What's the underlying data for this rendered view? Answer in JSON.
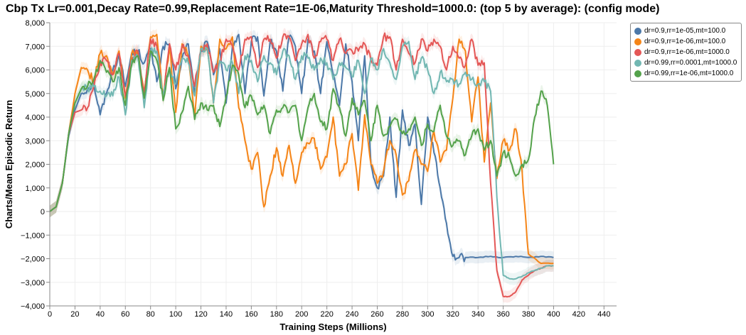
{
  "chart_data": {
    "type": "line",
    "title": "Cbp Tx Lr=0.001,Decay Rate=0.99,Replacement Rate=1E-06,Maturity Threshold=1000.0: (top 5 by average): (config mode)",
    "xlabel": "Training Steps (Millions)",
    "ylabel": "Charts/Mean Episodic Return",
    "xlim": [
      0,
      450
    ],
    "ylim": [
      -4000,
      8000
    ],
    "xticks": [
      0,
      20,
      40,
      60,
      80,
      100,
      120,
      140,
      160,
      180,
      200,
      220,
      240,
      260,
      280,
      300,
      320,
      340,
      360,
      380,
      400,
      420,
      440
    ],
    "yticks": [
      -4000,
      -3000,
      -2000,
      -1000,
      0,
      1000,
      2000,
      3000,
      4000,
      5000,
      6000,
      7000,
      8000
    ],
    "xtick_labels": [
      "0",
      "20",
      "40",
      "60",
      "80",
      "100",
      "120",
      "140",
      "160",
      "180",
      "200",
      "220",
      "240",
      "260",
      "280",
      "300",
      "320",
      "340",
      "360",
      "380",
      "400",
      "420",
      "440"
    ],
    "ytick_labels": [
      "−4,000",
      "−3,000",
      "−2,000",
      "−1,000",
      "0",
      "1,000",
      "2,000",
      "3,000",
      "4,000",
      "5,000",
      "6,000",
      "7,000",
      "8,000"
    ],
    "grid": true,
    "legend_position": "top-right",
    "series": [
      {
        "name": "dr=0.9,rr=1e-05,mt=100.0",
        "color": "#4c78a8",
        "x": [
          0,
          5,
          10,
          15,
          20,
          25,
          30,
          35,
          40,
          45,
          50,
          55,
          60,
          65,
          70,
          75,
          80,
          85,
          90,
          95,
          100,
          105,
          110,
          115,
          120,
          125,
          130,
          135,
          140,
          145,
          150,
          155,
          160,
          165,
          170,
          175,
          180,
          185,
          190,
          195,
          200,
          205,
          210,
          215,
          220,
          225,
          230,
          235,
          240,
          245,
          250,
          255,
          260,
          265,
          270,
          275,
          280,
          285,
          290,
          295,
          300,
          305,
          310,
          315,
          320,
          325,
          330,
          340,
          350,
          360,
          370,
          380,
          390,
          400
        ],
        "y": [
          0,
          200,
          1200,
          3200,
          4300,
          5000,
          5200,
          5400,
          4100,
          5000,
          6000,
          6600,
          5300,
          6700,
          6800,
          6300,
          6900,
          5500,
          7000,
          7100,
          5200,
          6500,
          7100,
          5000,
          6800,
          7200,
          5800,
          6900,
          4600,
          7000,
          7500,
          5000,
          7200,
          7400,
          4900,
          7200,
          6800,
          5100,
          7400,
          7000,
          5000,
          7300,
          6800,
          5000,
          7200,
          5800,
          4500,
          7100,
          5500,
          3000,
          6600,
          2000,
          1000,
          1500,
          4000,
          600,
          4300,
          2800,
          3700,
          300,
          4000,
          2500,
          1000,
          -500,
          -1900,
          -1950,
          -1950,
          -1950,
          -1900,
          -1950,
          -1900,
          -1950,
          -1900,
          -1950
        ]
      },
      {
        "name": "dr=0.9,rr=1e-06,mt=100.0",
        "color": "#f58518",
        "x": [
          0,
          5,
          10,
          15,
          20,
          25,
          30,
          35,
          40,
          45,
          50,
          55,
          60,
          65,
          70,
          75,
          80,
          85,
          90,
          95,
          100,
          105,
          110,
          115,
          120,
          125,
          130,
          135,
          140,
          145,
          150,
          155,
          160,
          165,
          170,
          175,
          180,
          185,
          190,
          195,
          200,
          205,
          210,
          215,
          220,
          225,
          230,
          235,
          240,
          245,
          250,
          255,
          260,
          265,
          270,
          275,
          280,
          285,
          290,
          295,
          300,
          305,
          310,
          315,
          320,
          325,
          330,
          335,
          340,
          345,
          350,
          355,
          360,
          365,
          370,
          375,
          380,
          390,
          400
        ],
        "y": [
          0,
          200,
          1200,
          3300,
          5000,
          6100,
          6000,
          5500,
          6700,
          6600,
          5800,
          6800,
          4800,
          6700,
          6600,
          5000,
          7400,
          7500,
          4800,
          7000,
          4200,
          7100,
          6600,
          4000,
          7000,
          7000,
          4600,
          7300,
          6900,
          7400,
          4400,
          3000,
          1800,
          2500,
          200,
          1500,
          2700,
          1500,
          2800,
          1200,
          2500,
          2900,
          3100,
          1800,
          2300,
          4000,
          1500,
          2000,
          3300,
          900,
          4100,
          2000,
          1200,
          1700,
          3000,
          2400,
          700,
          1300,
          2600,
          2000,
          1700,
          3400,
          2100,
          2600,
          4800,
          7300,
          6800,
          3800,
          5700,
          2100,
          4600,
          1400,
          3000,
          2600,
          3500,
          1700,
          -1800,
          -2200,
          -2200
        ]
      },
      {
        "name": "dr=0.9,rr=1e-06,mt=1000.0",
        "color": "#e45756",
        "x": [
          0,
          5,
          10,
          15,
          20,
          25,
          30,
          35,
          40,
          45,
          50,
          55,
          60,
          65,
          70,
          75,
          80,
          85,
          90,
          95,
          100,
          105,
          110,
          115,
          120,
          125,
          130,
          135,
          140,
          145,
          150,
          155,
          160,
          165,
          170,
          175,
          180,
          185,
          190,
          195,
          200,
          205,
          210,
          215,
          220,
          225,
          230,
          235,
          240,
          245,
          250,
          255,
          260,
          265,
          270,
          275,
          280,
          285,
          290,
          295,
          300,
          305,
          310,
          315,
          320,
          325,
          330,
          335,
          340,
          345,
          350,
          355,
          360,
          365,
          370,
          375,
          380,
          385,
          390,
          395,
          400
        ],
        "y": [
          0,
          200,
          1200,
          3300,
          4200,
          4300,
          4400,
          5300,
          6300,
          6400,
          5800,
          6700,
          4900,
          6400,
          6800,
          5000,
          7300,
          7000,
          4800,
          7100,
          6000,
          7000,
          6600,
          5300,
          6800,
          7100,
          5900,
          6300,
          7300,
          7000,
          6000,
          7300,
          7400,
          6100,
          7300,
          7300,
          6500,
          7400,
          7400,
          6400,
          7100,
          7500,
          6500,
          7200,
          7300,
          6400,
          7300,
          6700,
          6800,
          6800,
          7100,
          6400,
          6200,
          7400,
          7400,
          6000,
          7300,
          6700,
          6300,
          7300,
          6800,
          7300,
          7000,
          6000,
          7000,
          6500,
          6200,
          7300,
          6200,
          6300,
          1200,
          -2500,
          -3600,
          -3600,
          -3400,
          -2900,
          -2700,
          -2500,
          -2400,
          -2300,
          -2300
        ]
      },
      {
        "name": "dr=0.99,rr=0.0001,mt=1000.0",
        "color": "#72b7b2",
        "x": [
          0,
          5,
          10,
          15,
          20,
          25,
          30,
          35,
          40,
          45,
          50,
          55,
          60,
          65,
          70,
          75,
          80,
          85,
          90,
          95,
          100,
          105,
          110,
          115,
          120,
          125,
          130,
          135,
          140,
          145,
          150,
          155,
          160,
          165,
          170,
          175,
          180,
          185,
          190,
          195,
          200,
          205,
          210,
          215,
          220,
          225,
          230,
          235,
          240,
          245,
          250,
          255,
          260,
          265,
          270,
          275,
          280,
          285,
          290,
          295,
          300,
          305,
          310,
          315,
          320,
          325,
          330,
          335,
          340,
          345,
          350,
          355,
          360,
          365,
          370,
          375,
          380,
          385,
          390,
          395,
          400
        ],
        "y": [
          0,
          200,
          1200,
          3300,
          4600,
          5200,
          5200,
          5300,
          5100,
          4900,
          4900,
          5700,
          4100,
          6400,
          6600,
          4400,
          6800,
          6800,
          4900,
          6100,
          5400,
          6500,
          6300,
          4900,
          6900,
          6900,
          4600,
          6400,
          6000,
          6300,
          5000,
          6600,
          6400,
          5500,
          6600,
          6300,
          5800,
          6800,
          6600,
          5600,
          6600,
          6500,
          6000,
          6500,
          6300,
          5600,
          6300,
          6100,
          5700,
          6400,
          5000,
          6500,
          6000,
          6900,
          6300,
          5600,
          7000,
          7200,
          5600,
          6500,
          6000,
          5000,
          5900,
          5500,
          5600,
          5400,
          5900,
          5600,
          5400,
          5500,
          5100,
          600,
          -2700,
          -2850,
          -2850,
          -2750,
          -2600,
          -2500,
          -2400,
          -2300,
          -2300
        ]
      },
      {
        "name": "dr=0.99,rr=1e-06,mt=1000.0",
        "color": "#54a24b",
        "x": [
          0,
          5,
          10,
          15,
          20,
          25,
          30,
          35,
          40,
          45,
          50,
          55,
          60,
          65,
          70,
          75,
          80,
          85,
          90,
          95,
          100,
          105,
          110,
          115,
          120,
          125,
          130,
          135,
          140,
          145,
          150,
          155,
          160,
          165,
          170,
          175,
          180,
          185,
          190,
          195,
          200,
          205,
          210,
          215,
          220,
          225,
          230,
          235,
          240,
          245,
          250,
          255,
          260,
          265,
          270,
          275,
          280,
          285,
          290,
          295,
          300,
          305,
          310,
          315,
          320,
          325,
          330,
          335,
          340,
          345,
          350,
          355,
          360,
          365,
          370,
          375,
          380,
          385,
          390,
          395,
          400
        ],
        "y": [
          0,
          200,
          1200,
          3300,
          4600,
          5200,
          5300,
          5600,
          6400,
          5900,
          5500,
          6100,
          4500,
          6200,
          6600,
          4800,
          6800,
          6400,
          4700,
          6100,
          3500,
          4200,
          5300,
          3900,
          4600,
          4300,
          4500,
          3600,
          4900,
          6200,
          5800,
          4400,
          4900,
          4100,
          4500,
          3300,
          4300,
          4400,
          4200,
          4500,
          3000,
          4400,
          5000,
          3800,
          3500,
          5200,
          4400,
          3200,
          4800,
          4100,
          4700,
          3000,
          4500,
          3200,
          3600,
          3900,
          3300,
          3500,
          4000,
          2800,
          3700,
          3400,
          4500,
          3200,
          2800,
          3000,
          2400,
          3200,
          3500,
          2600,
          3000,
          1500,
          2500,
          2300,
          1500,
          2000,
          2200,
          4000,
          5100,
          4500,
          2000
        ]
      }
    ]
  }
}
